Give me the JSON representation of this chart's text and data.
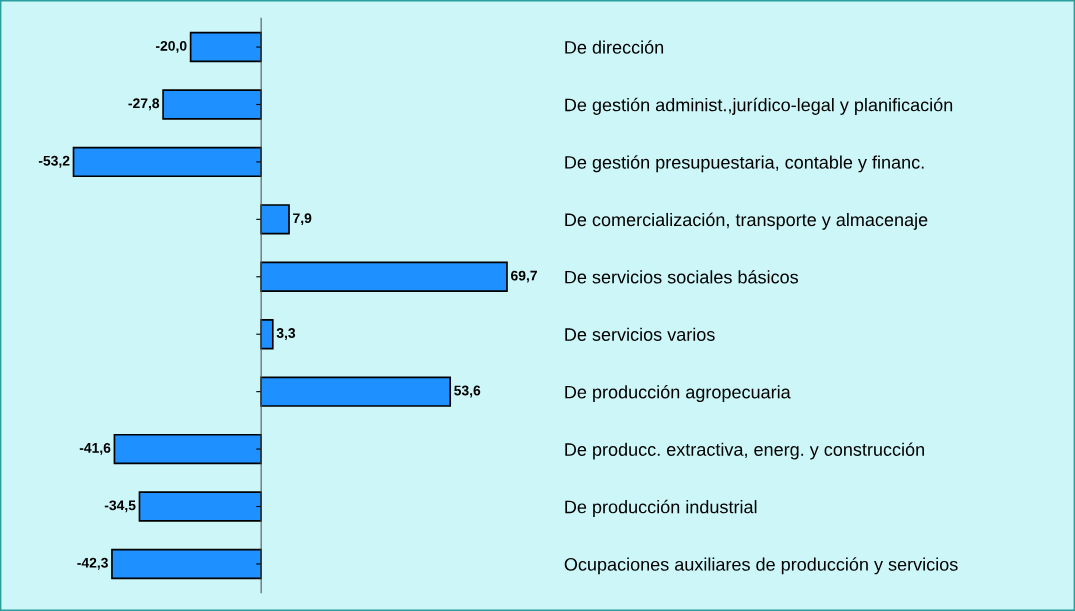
{
  "chart_data": {
    "type": "bar",
    "orientation": "horizontal",
    "categories": [
      "De dirección",
      "De gestión administ.,jurídico-legal y planificación",
      "De gestión presupuestaria, contable y financ.",
      "De comercialización, transporte y almacenaje",
      "De servicios sociales básicos",
      "De servicios varios",
      "De producción agropecuaria",
      "De producc. extractiva, energ. y construcción",
      "De producción industrial",
      "Ocupaciones auxiliares de producción y servicios"
    ],
    "values": [
      -20.0,
      -27.8,
      -53.2,
      7.9,
      69.7,
      3.3,
      53.6,
      -41.6,
      -34.5,
      -42.3
    ],
    "value_labels": [
      "-20,0",
      "-27,8",
      "-53,2",
      "7,9",
      "69,7",
      "3,3",
      "53,6",
      "-41,6",
      "-34,5",
      "-42,3"
    ],
    "color": "#1e90ff",
    "grid": false,
    "legend": false
  }
}
